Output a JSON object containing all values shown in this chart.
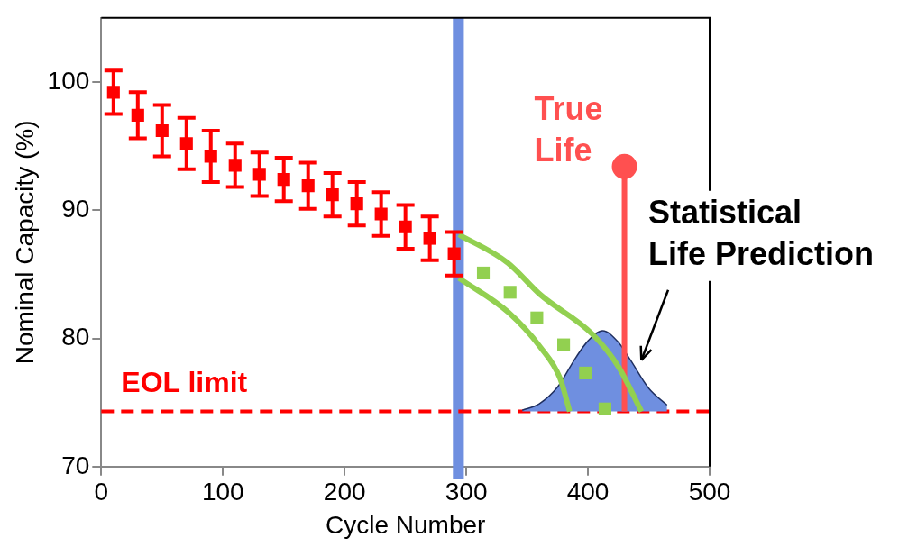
{
  "chart_data": {
    "type": "scatter",
    "xlabel": "Cycle Number",
    "ylabel": "Nominal Capacity (%)",
    "xlim": [
      0,
      500
    ],
    "xticks": [
      0,
      100,
      200,
      300,
      400,
      500
    ],
    "ylim": [
      70,
      105
    ],
    "yticks": [
      70,
      80,
      90,
      100
    ],
    "grid": false,
    "legend": false,
    "series": [
      {
        "name": "Statistical Life Prediction",
        "type": "area",
        "color": "#6f8fe0",
        "x": [
          346,
          360,
          375,
          390,
          400,
          412,
          425,
          435,
          450,
          465
        ],
        "values": [
          74.4,
          74.9,
          76.2,
          78.5,
          79.8,
          80.6,
          79.7,
          78.3,
          76.1,
          74.8
        ]
      },
      {
        "name": "True Life",
        "type": "line",
        "marker": "circle",
        "color": "#ff5050",
        "x": [
          430,
          430
        ],
        "values": [
          74.3,
          93.4
        ]
      },
      {
        "type": "line",
        "marker": "none",
        "color": "#92d050",
        "x": [
          294,
          334,
          361,
          404,
          425,
          444
        ],
        "values": [
          88.1,
          85.9,
          83.4,
          80.3,
          77.8,
          74.3
        ]
      },
      {
        "type": "line",
        "marker": "none",
        "color": "#92d050",
        "x": [
          294,
          335,
          361,
          377,
          385
        ],
        "values": [
          84.7,
          82.0,
          79.3,
          76.9,
          74.3
        ]
      },
      {
        "type": "scatter",
        "marker": "square",
        "color": "#92d050",
        "x": [
          314,
          336,
          358,
          380,
          398,
          414
        ],
        "values": [
          85.1,
          83.6,
          81.6,
          79.5,
          77.3,
          74.5
        ]
      },
      {
        "type": "scatter",
        "marker": "square",
        "color": "#ff0000",
        "x": [
          10,
          30,
          50,
          70,
          90,
          110,
          130,
          150,
          170,
          190,
          210,
          230,
          250,
          270,
          290
        ],
        "values": [
          99.2,
          97.4,
          96.2,
          95.2,
          94.2,
          93.5,
          92.8,
          92.4,
          91.9,
          91.2,
          90.5,
          89.7,
          88.7,
          87.8,
          86.6
        ],
        "errors": [
          1.7,
          1.8,
          2.0,
          2.0,
          2.0,
          1.7,
          1.7,
          1.7,
          1.8,
          1.7,
          1.7,
          1.7,
          1.7,
          1.7,
          1.7
        ]
      }
    ],
    "ref_lines": [
      {
        "axis": "y",
        "value": 74.3,
        "label": "EOL limit",
        "color": "#ff0000",
        "line_style": "dashed"
      }
    ],
    "bands": [
      {
        "axis": "x",
        "from": 289,
        "to": 298,
        "color": "#6f8fe0"
      }
    ]
  }
}
